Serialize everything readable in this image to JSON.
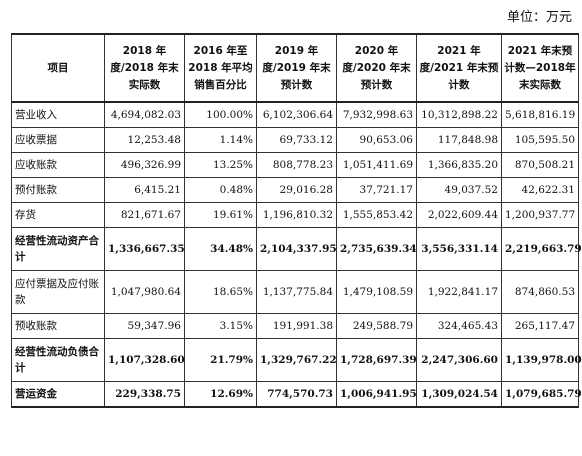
{
  "unit_label": "单位：万元",
  "headers": [
    "项目",
    "2018 年度/2018 年末实际数",
    "2016 年至2018 年平均销售百分比",
    "2019 年度/2019 年末预计数",
    "2020 年度/2020 年末预计数",
    "2021 年度/2021 年末预计数",
    "2021 年末预计数—2018年末实际数"
  ],
  "rows": [
    {
      "label": "营业收入",
      "v": [
        "4,694,082.03",
        "100.00%",
        "6,102,306.64",
        "7,932,998.63",
        "10,312,898.22",
        "5,618,816.19"
      ],
      "bold": false,
      "tall": false
    },
    {
      "label": "应收票据",
      "v": [
        "12,253.48",
        "1.14%",
        "69,733.12",
        "90,653.06",
        "117,848.98",
        "105,595.50"
      ],
      "bold": false,
      "tall": false
    },
    {
      "label": "应收账款",
      "v": [
        "496,326.99",
        "13.25%",
        "808,778.23",
        "1,051,411.69",
        "1,366,835.20",
        "870,508.21"
      ],
      "bold": false,
      "tall": false
    },
    {
      "label": "预付账款",
      "v": [
        "6,415.21",
        "0.48%",
        "29,016.28",
        "37,721.17",
        "49,037.52",
        "42,622.31"
      ],
      "bold": false,
      "tall": false
    },
    {
      "label": "存货",
      "v": [
        "821,671.67",
        "19.61%",
        "1,196,810.32",
        "1,555,853.42",
        "2,022,609.44",
        "1,200,937.77"
      ],
      "bold": false,
      "tall": false
    },
    {
      "label": "经营性流动资产合计",
      "v": [
        "1,336,667.35",
        "34.48%",
        "2,104,337.95",
        "2,735,639.34",
        "3,556,331.14",
        "2,219,663.79"
      ],
      "bold": true,
      "tall": true
    },
    {
      "label": "应付票据及应付账款",
      "v": [
        "1,047,980.64",
        "18.65%",
        "1,137,775.84",
        "1,479,108.59",
        "1,922,841.17",
        "874,860.53"
      ],
      "bold": false,
      "tall": true
    },
    {
      "label": "预收账款",
      "v": [
        "59,347.96",
        "3.15%",
        "191,991.38",
        "249,588.79",
        "324,465.43",
        "265,117.47"
      ],
      "bold": false,
      "tall": false
    },
    {
      "label": "经营性流动负债合计",
      "v": [
        "1,107,328.60",
        "21.79%",
        "1,329,767.22",
        "1,728,697.39",
        "2,247,306.60",
        "1,139,978.00"
      ],
      "bold": true,
      "tall": true
    },
    {
      "label": "营运资金",
      "v": [
        "229,338.75",
        "12.69%",
        "774,570.73",
        "1,006,941.95",
        "1,309,024.54",
        "1,079,685.79"
      ],
      "bold": true,
      "tall": false
    }
  ]
}
